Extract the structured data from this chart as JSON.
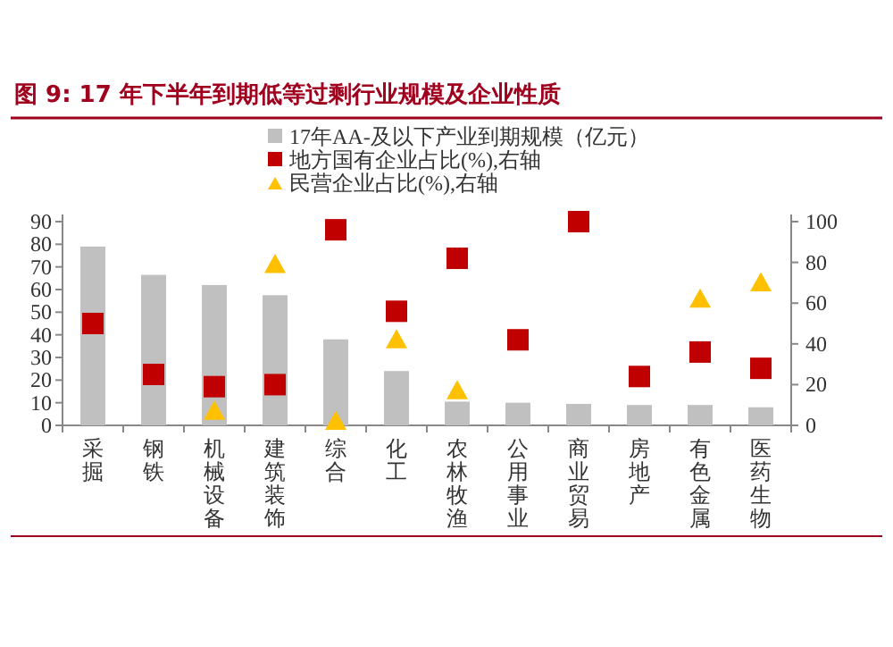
{
  "chart_data": {
    "type": "bar",
    "title": "图 9:  17 年下半年到期低等过剩行业规模及企业性质",
    "categories": [
      "采掘",
      "钢铁",
      "机械设备",
      "建筑装饰",
      "综合",
      "化工",
      "农林牧渔",
      "公用事业",
      "商业贸易",
      "房地产",
      "有色金属",
      "医药生物"
    ],
    "series": [
      {
        "name": "17年AA-及以下产业到期规模（亿元）",
        "color": "#c0c0c0",
        "values": [
          79,
          66.5,
          62,
          57.5,
          38,
          24,
          10.5,
          10,
          9.5,
          9,
          9,
          8
        ]
      },
      {
        "name": "地方国有企业占比(%),右轴",
        "type": "scatter",
        "marker": "square",
        "axis": "y2",
        "color": "#c00000",
        "values": [
          50,
          25,
          19,
          20,
          96,
          56,
          82,
          42,
          100,
          24,
          36,
          28
        ]
      },
      {
        "name": "民营企业占比(%),右轴",
        "type": "scatter",
        "marker": "triangle",
        "axis": "y2",
        "color": "#ffc000",
        "values": [
          null,
          null,
          7,
          79,
          2,
          42,
          17,
          null,
          null,
          null,
          62,
          70
        ]
      }
    ],
    "ylim": [
      0,
      90
    ],
    "yticks": [
      0,
      10,
      20,
      30,
      40,
      50,
      60,
      70,
      80,
      90
    ],
    "y2lim": [
      0,
      100
    ],
    "y2ticks": [
      0,
      20,
      40,
      60,
      80,
      100
    ],
    "legend": "top",
    "grid": false
  }
}
